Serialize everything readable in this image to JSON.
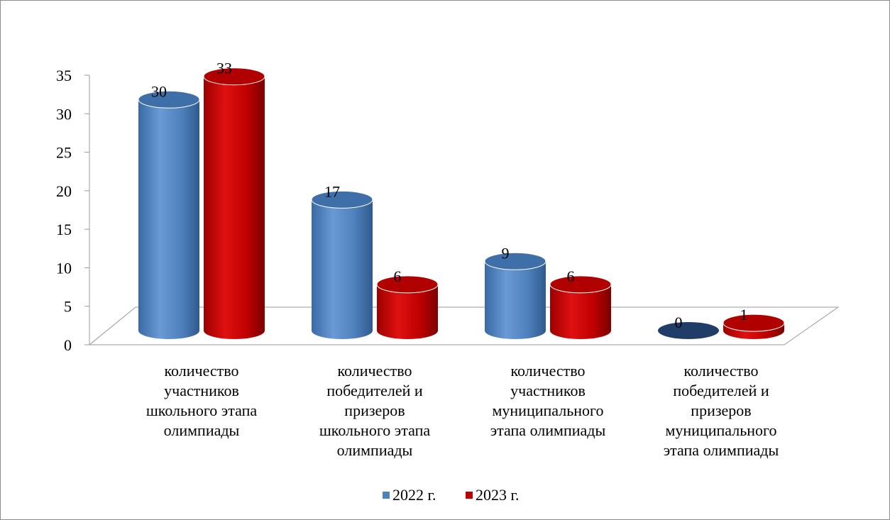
{
  "chart_data": {
    "type": "bar",
    "categories": [
      [
        "количество",
        "участников",
        "школьного этапа",
        "олимпиады"
      ],
      [
        "количество",
        "победителей и",
        "призеров",
        "школьного этапа",
        "олимпиады"
      ],
      [
        "количество",
        "участников",
        "муниципального",
        "этапа олимпиады"
      ],
      [
        "количество",
        "победителей и",
        "призеров",
        "муниципального",
        "этапа олимпиады"
      ]
    ],
    "series": [
      {
        "name": "2022 г.",
        "values": [
          30,
          17,
          9,
          0
        ],
        "color": "#4f81bd"
      },
      {
        "name": "2023 г.",
        "values": [
          33,
          6,
          6,
          1
        ],
        "color": "#c00000"
      }
    ],
    "ylim": [
      0,
      35
    ],
    "yticks": [
      0,
      5,
      10,
      15,
      20,
      25,
      30,
      35
    ],
    "bar_shape": "cylinder",
    "three_d": true,
    "legend_position": "bottom",
    "grid": false
  }
}
